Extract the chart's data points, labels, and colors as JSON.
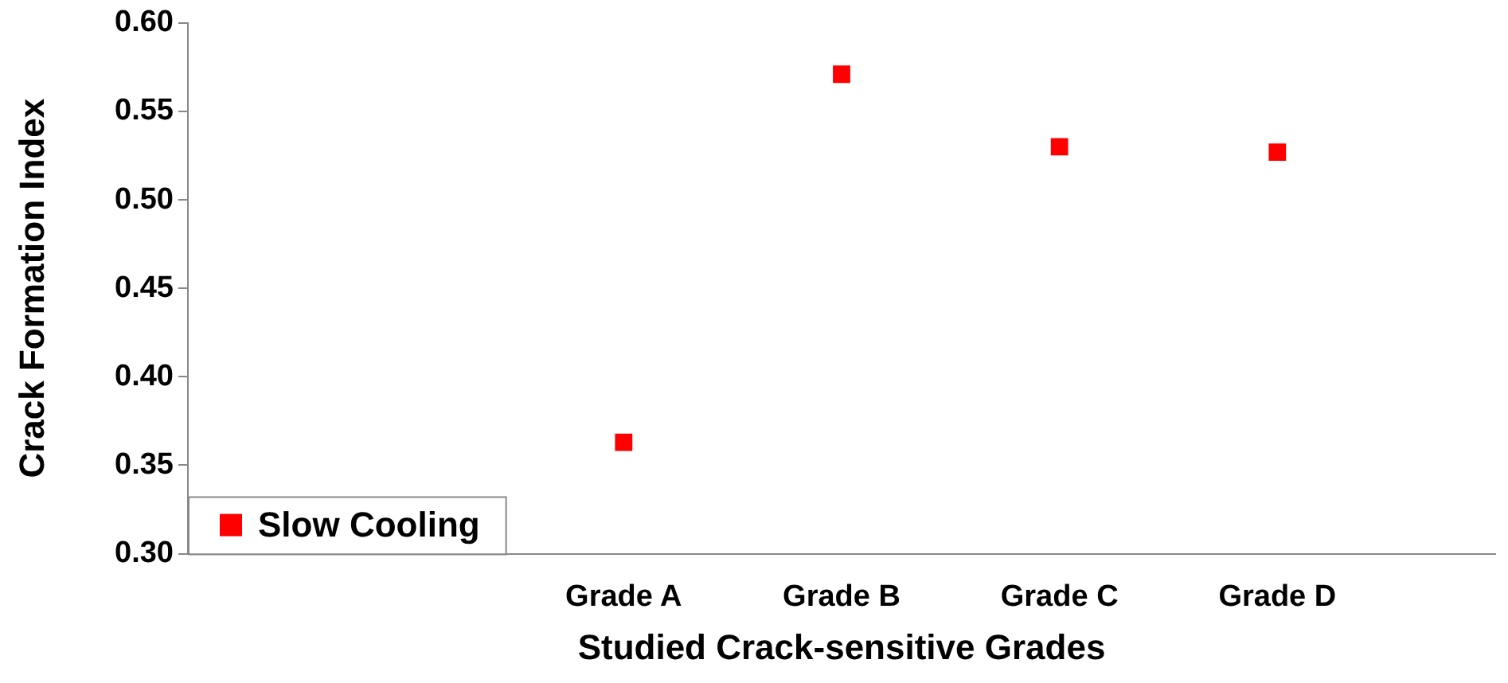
{
  "chart_data": {
    "type": "scatter",
    "xlabel": "Studied Crack-sensitive Grades",
    "ylabel": "Crack Formation Index",
    "categories": [
      null,
      null,
      "Grade A",
      "Grade B",
      "Grade C",
      "Grade D",
      null
    ],
    "series": [
      {
        "name": "Slow Cooling",
        "color": "#ff0000",
        "values": [
          null,
          null,
          0.363,
          0.571,
          0.53,
          0.527,
          null
        ]
      }
    ],
    "ylim": [
      0.3,
      0.6
    ],
    "yticks": [
      {
        "value": 0.3,
        "label": "0.30"
      },
      {
        "value": 0.35,
        "label": "0.35"
      },
      {
        "value": 0.4,
        "label": "0.40"
      },
      {
        "value": 0.45,
        "label": "0.45"
      },
      {
        "value": 0.5,
        "label": "0.50"
      },
      {
        "value": 0.55,
        "label": "0.55"
      },
      {
        "value": 0.6,
        "label": "0.60"
      }
    ],
    "grid": false,
    "legend": "bottom left",
    "marker": "square"
  }
}
